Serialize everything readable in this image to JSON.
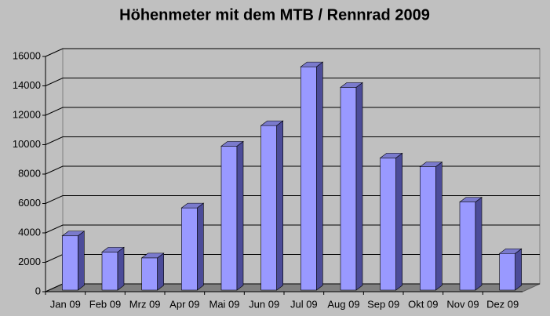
{
  "chart_data": {
    "type": "bar3d",
    "title": "Höhenmeter mit dem MTB / Rennrad 2009",
    "categories": [
      "Jan 09",
      "Feb 09",
      "Mrz 09",
      "Apr 09",
      "Mai 09",
      "Jun 09",
      "Jul 09",
      "Aug 09",
      "Sep 09",
      "Okt 09",
      "Nov 09",
      "Dez 09"
    ],
    "values": [
      3800,
      2700,
      2300,
      5700,
      9900,
      11300,
      15300,
      13900,
      9100,
      8500,
      6100,
      2600
    ],
    "color": "#9999ff",
    "ylim": [
      0,
      16000
    ],
    "yticks": [
      0,
      2000,
      4000,
      6000,
      8000,
      10000,
      12000,
      14000,
      16000
    ],
    "grid": true
  }
}
